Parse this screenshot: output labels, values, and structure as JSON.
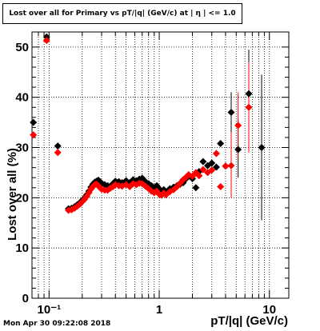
{
  "title": "Lost over all for Primary vs pT/|q| (GeV/c) at |  η  | <= 1.0",
  "footer": "Mon Apr 30 09:22:08 2018",
  "chart_data": {
    "type": "scatter",
    "title": "Lost over all for Primary vs pT/|q| (GeV/c) at |  η  | <= 1.0",
    "xlabel": "pT/|q| (GeV/c)",
    "ylabel": "Lost over all (%)",
    "xscale": "log",
    "xlim": [
      0.07,
      15
    ],
    "ylim": [
      0,
      53
    ],
    "grid": true,
    "x_tick_labels": [
      "10⁻¹",
      "1",
      "10"
    ],
    "y_tick_labels": [
      "0",
      "10",
      "20",
      "30",
      "40",
      "50"
    ],
    "series": [
      {
        "color": "#000000",
        "marker": "diamond",
        "points": [
          {
            "x": 0.072,
            "y": 35.0
          },
          {
            "x": 0.095,
            "y": 52.0
          },
          {
            "x": 0.12,
            "y": 30.3
          },
          {
            "x": 0.15,
            "y": 17.8
          },
          {
            "x": 0.16,
            "y": 17.9
          },
          {
            "x": 0.17,
            "y": 18.2
          },
          {
            "x": 0.18,
            "y": 18.6
          },
          {
            "x": 0.19,
            "y": 19.0
          },
          {
            "x": 0.2,
            "y": 19.5
          },
          {
            "x": 0.21,
            "y": 20.0
          },
          {
            "x": 0.22,
            "y": 20.6
          },
          {
            "x": 0.23,
            "y": 21.3
          },
          {
            "x": 0.24,
            "y": 22.1
          },
          {
            "x": 0.25,
            "y": 22.7
          },
          {
            "x": 0.26,
            "y": 23.1
          },
          {
            "x": 0.27,
            "y": 23.3
          },
          {
            "x": 0.28,
            "y": 23.5
          },
          {
            "x": 0.29,
            "y": 23.2
          },
          {
            "x": 0.3,
            "y": 22.9
          },
          {
            "x": 0.32,
            "y": 22.6
          },
          {
            "x": 0.34,
            "y": 22.4
          },
          {
            "x": 0.36,
            "y": 22.3
          },
          {
            "x": 0.38,
            "y": 22.8
          },
          {
            "x": 0.4,
            "y": 23.3
          },
          {
            "x": 0.43,
            "y": 23.2
          },
          {
            "x": 0.46,
            "y": 23.0
          },
          {
            "x": 0.5,
            "y": 23.4
          },
          {
            "x": 0.54,
            "y": 23.0
          },
          {
            "x": 0.58,
            "y": 23.6
          },
          {
            "x": 0.62,
            "y": 23.4
          },
          {
            "x": 0.66,
            "y": 23.7
          },
          {
            "x": 0.7,
            "y": 23.9
          },
          {
            "x": 0.75,
            "y": 23.2
          },
          {
            "x": 0.8,
            "y": 22.8
          },
          {
            "x": 0.85,
            "y": 22.4
          },
          {
            "x": 0.9,
            "y": 22.0
          },
          {
            "x": 0.95,
            "y": 22.4
          },
          {
            "x": 1.0,
            "y": 21.8
          },
          {
            "x": 1.05,
            "y": 21.3
          },
          {
            "x": 1.1,
            "y": 21.6
          },
          {
            "x": 1.15,
            "y": 21.2
          },
          {
            "x": 1.25,
            "y": 21.8
          },
          {
            "x": 1.35,
            "y": 22.1
          },
          {
            "x": 1.45,
            "y": 22.4
          },
          {
            "x": 1.55,
            "y": 22.7
          },
          {
            "x": 1.65,
            "y": 23.0
          },
          {
            "x": 1.75,
            "y": 23.8
          },
          {
            "x": 1.85,
            "y": 24.3
          },
          {
            "x": 2.0,
            "y": 23.8
          },
          {
            "x": 2.15,
            "y": 22.0
          },
          {
            "x": 2.3,
            "y": 25.2
          },
          {
            "x": 2.5,
            "y": 27.2
          },
          {
            "x": 2.75,
            "y": 26.4
          },
          {
            "x": 3.0,
            "y": 26.9
          },
          {
            "x": 3.3,
            "y": 26.1
          },
          {
            "x": 3.6,
            "y": 30.8
          },
          {
            "x": 4.0,
            "y": 26.3
          },
          {
            "x": 4.5,
            "y": 37.0
          },
          {
            "x": 5.2,
            "y": 29.6
          },
          {
            "x": 6.5,
            "y": 40.7
          },
          {
            "x": 8.5,
            "y": 30.0
          }
        ]
      },
      {
        "color": "#ff0000",
        "marker": "diamond",
        "points": [
          {
            "x": 0.072,
            "y": 32.5
          },
          {
            "x": 0.095,
            "y": 51.3
          },
          {
            "x": 0.12,
            "y": 29.0
          },
          {
            "x": 0.15,
            "y": 17.5
          },
          {
            "x": 0.16,
            "y": 17.6
          },
          {
            "x": 0.17,
            "y": 17.9
          },
          {
            "x": 0.18,
            "y": 18.3
          },
          {
            "x": 0.19,
            "y": 18.7
          },
          {
            "x": 0.2,
            "y": 19.2
          },
          {
            "x": 0.21,
            "y": 19.7
          },
          {
            "x": 0.22,
            "y": 20.3
          },
          {
            "x": 0.23,
            "y": 21.0
          },
          {
            "x": 0.24,
            "y": 21.7
          },
          {
            "x": 0.25,
            "y": 22.2
          },
          {
            "x": 0.26,
            "y": 22.6
          },
          {
            "x": 0.27,
            "y": 22.7
          },
          {
            "x": 0.28,
            "y": 22.4
          },
          {
            "x": 0.29,
            "y": 22.0
          },
          {
            "x": 0.3,
            "y": 21.7
          },
          {
            "x": 0.32,
            "y": 21.5
          },
          {
            "x": 0.34,
            "y": 21.5
          },
          {
            "x": 0.36,
            "y": 21.9
          },
          {
            "x": 0.38,
            "y": 22.2
          },
          {
            "x": 0.4,
            "y": 22.6
          },
          {
            "x": 0.43,
            "y": 22.4
          },
          {
            "x": 0.46,
            "y": 22.3
          },
          {
            "x": 0.5,
            "y": 22.6
          },
          {
            "x": 0.54,
            "y": 22.2
          },
          {
            "x": 0.58,
            "y": 22.8
          },
          {
            "x": 0.62,
            "y": 22.6
          },
          {
            "x": 0.66,
            "y": 22.9
          },
          {
            "x": 0.7,
            "y": 22.8
          },
          {
            "x": 0.75,
            "y": 22.3
          },
          {
            "x": 0.8,
            "y": 21.8
          },
          {
            "x": 0.85,
            "y": 21.3
          },
          {
            "x": 0.9,
            "y": 21.0
          },
          {
            "x": 0.95,
            "y": 21.3
          },
          {
            "x": 1.0,
            "y": 20.7
          },
          {
            "x": 1.05,
            "y": 20.5
          },
          {
            "x": 1.1,
            "y": 20.9
          },
          {
            "x": 1.15,
            "y": 20.6
          },
          {
            "x": 1.25,
            "y": 21.2
          },
          {
            "x": 1.35,
            "y": 21.6
          },
          {
            "x": 1.45,
            "y": 22.2
          },
          {
            "x": 1.55,
            "y": 22.9
          },
          {
            "x": 1.65,
            "y": 23.6
          },
          {
            "x": 1.75,
            "y": 24.1
          },
          {
            "x": 1.85,
            "y": 24.6
          },
          {
            "x": 2.0,
            "y": 24.3
          },
          {
            "x": 2.15,
            "y": 25.0
          },
          {
            "x": 2.3,
            "y": 24.4
          },
          {
            "x": 2.5,
            "y": 25.6
          },
          {
            "x": 2.75,
            "y": 25.0
          },
          {
            "x": 3.0,
            "y": 25.5
          },
          {
            "x": 3.3,
            "y": 28.8
          },
          {
            "x": 3.6,
            "y": 22.2
          },
          {
            "x": 4.0,
            "y": 26.3
          },
          {
            "x": 4.5,
            "y": 26.4
          },
          {
            "x": 5.2,
            "y": 34.4
          },
          {
            "x": 6.5,
            "y": 38.0
          }
        ]
      }
    ],
    "error_bars": [
      {
        "series": 0,
        "x": 4.5,
        "low": 33.0,
        "high": 41.0
      },
      {
        "series": 0,
        "x": 5.2,
        "low": 24.0,
        "high": 35.5
      },
      {
        "series": 0,
        "x": 6.5,
        "low": 30.0,
        "high": 49.5
      },
      {
        "series": 0,
        "x": 8.5,
        "low": 15.5,
        "high": 44.5
      },
      {
        "series": 1,
        "x": 4.5,
        "low": 20.0,
        "high": 33.0
      },
      {
        "series": 1,
        "x": 5.2,
        "low": 28.0,
        "high": 41.0
      },
      {
        "series": 1,
        "x": 6.5,
        "low": 29.0,
        "high": 47.0
      }
    ]
  }
}
